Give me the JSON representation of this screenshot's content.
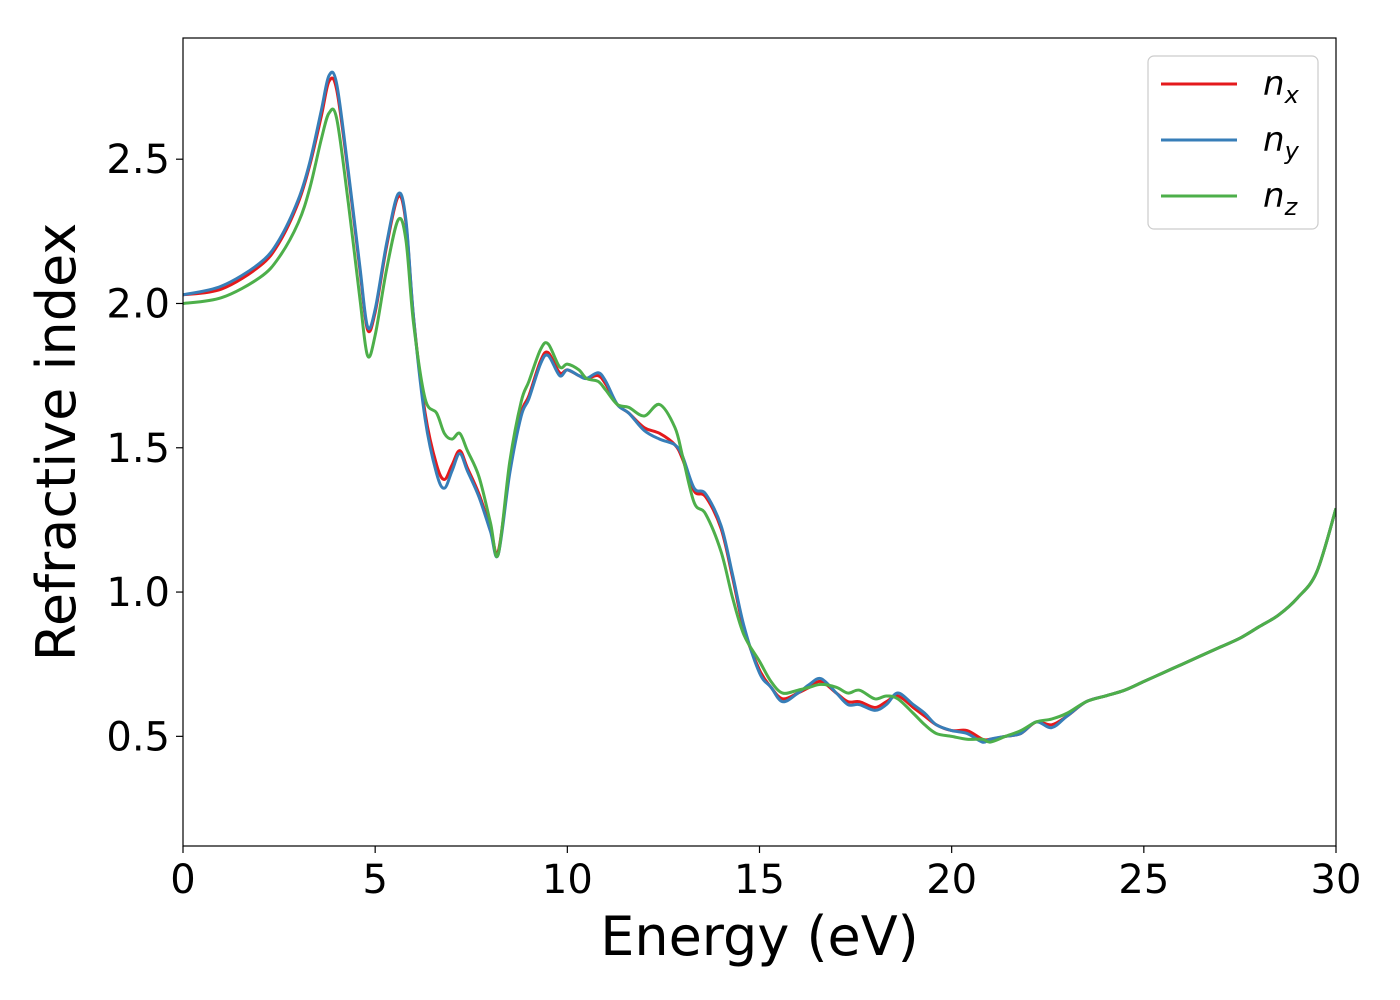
{
  "chart_data": {
    "type": "line",
    "xlabel": "Energy (eV)",
    "ylabel": "Refractive index",
    "xlim": [
      0,
      30
    ],
    "ylim": [
      0.12,
      2.92
    ],
    "xticks": [
      0,
      5,
      10,
      15,
      20,
      25,
      30
    ],
    "xtick_labels": [
      "0",
      "5",
      "10",
      "15",
      "20",
      "25",
      "30"
    ],
    "yticks": [
      0.5,
      1.0,
      1.5,
      2.0,
      2.5
    ],
    "ytick_labels": [
      "0.5",
      "1.0",
      "1.5",
      "2.0",
      "2.5"
    ],
    "grid": false,
    "legend_position": "top-right",
    "series": [
      {
        "name": "n_x",
        "label_base": "n",
        "label_sub": "x",
        "color": "#e41a1c",
        "x": [
          0,
          1,
          2,
          2.5,
          3,
          3.3,
          3.6,
          3.8,
          4.0,
          4.3,
          4.6,
          4.8,
          5.0,
          5.3,
          5.6,
          5.8,
          6.0,
          6.3,
          6.6,
          6.8,
          7.0,
          7.2,
          7.4,
          7.7,
          8.0,
          8.2,
          8.5,
          8.8,
          9.0,
          9.3,
          9.5,
          9.8,
          10.0,
          10.3,
          10.5,
          10.8,
          11.0,
          11.3,
          11.6,
          12.0,
          12.4,
          12.8,
          13.0,
          13.3,
          13.6,
          14.0,
          14.3,
          14.6,
          15.0,
          15.3,
          15.6,
          16.0,
          16.3,
          16.6,
          17.0,
          17.3,
          17.6,
          18.0,
          18.3,
          18.6,
          19.0,
          19.3,
          19.6,
          20.0,
          20.4,
          20.8,
          21.0,
          21.4,
          21.8,
          22.2,
          22.6,
          23.0,
          23.5,
          24.0,
          24.5,
          25.0,
          25.5,
          26.0,
          26.5,
          27.0,
          27.5,
          28.0,
          28.5,
          29.0,
          29.5,
          30.0
        ],
        "y": [
          2.03,
          2.05,
          2.13,
          2.21,
          2.35,
          2.48,
          2.65,
          2.77,
          2.74,
          2.45,
          2.12,
          1.91,
          1.97,
          2.2,
          2.37,
          2.28,
          1.95,
          1.62,
          1.44,
          1.39,
          1.44,
          1.49,
          1.43,
          1.34,
          1.22,
          1.14,
          1.42,
          1.62,
          1.68,
          1.8,
          1.83,
          1.76,
          1.77,
          1.75,
          1.74,
          1.75,
          1.72,
          1.65,
          1.62,
          1.57,
          1.55,
          1.51,
          1.46,
          1.35,
          1.33,
          1.22,
          1.05,
          0.87,
          0.73,
          0.67,
          0.63,
          0.65,
          0.67,
          0.69,
          0.65,
          0.62,
          0.62,
          0.6,
          0.62,
          0.64,
          0.6,
          0.57,
          0.54,
          0.52,
          0.52,
          0.49,
          0.49,
          0.5,
          0.51,
          0.55,
          0.54,
          0.57,
          0.62,
          0.64,
          0.66,
          0.69,
          0.72,
          0.75,
          0.78,
          0.81,
          0.84,
          0.88,
          0.92,
          0.98,
          1.07,
          1.29
        ]
      },
      {
        "name": "n_y",
        "label_base": "n",
        "label_sub": "y",
        "color": "#377eb8",
        "x": [
          0,
          1,
          2,
          2.5,
          3,
          3.3,
          3.6,
          3.8,
          4.0,
          4.3,
          4.6,
          4.8,
          5.0,
          5.3,
          5.6,
          5.8,
          6.0,
          6.3,
          6.6,
          6.8,
          7.0,
          7.2,
          7.4,
          7.7,
          8.0,
          8.2,
          8.5,
          8.8,
          9.0,
          9.3,
          9.5,
          9.8,
          10.0,
          10.3,
          10.5,
          10.8,
          11.0,
          11.3,
          11.6,
          12.0,
          12.4,
          12.8,
          13.0,
          13.3,
          13.6,
          14.0,
          14.3,
          14.6,
          15.0,
          15.3,
          15.6,
          16.0,
          16.3,
          16.6,
          17.0,
          17.3,
          17.6,
          18.0,
          18.3,
          18.6,
          19.0,
          19.3,
          19.6,
          20.0,
          20.4,
          20.8,
          21.0,
          21.4,
          21.8,
          22.2,
          22.6,
          23.0,
          23.5,
          24.0,
          24.5,
          25.0,
          25.5,
          26.0,
          26.5,
          27.0,
          27.5,
          28.0,
          28.5,
          29.0,
          29.5,
          30.0
        ],
        "y": [
          2.03,
          2.06,
          2.14,
          2.22,
          2.36,
          2.49,
          2.67,
          2.79,
          2.76,
          2.46,
          2.13,
          1.92,
          1.98,
          2.21,
          2.38,
          2.29,
          1.95,
          1.6,
          1.41,
          1.36,
          1.42,
          1.48,
          1.42,
          1.33,
          1.21,
          1.13,
          1.41,
          1.61,
          1.67,
          1.79,
          1.82,
          1.75,
          1.77,
          1.75,
          1.74,
          1.76,
          1.73,
          1.65,
          1.62,
          1.56,
          1.53,
          1.51,
          1.47,
          1.36,
          1.34,
          1.23,
          1.06,
          0.88,
          0.72,
          0.67,
          0.62,
          0.65,
          0.68,
          0.7,
          0.65,
          0.61,
          0.61,
          0.59,
          0.61,
          0.65,
          0.61,
          0.58,
          0.54,
          0.52,
          0.51,
          0.48,
          0.49,
          0.5,
          0.51,
          0.55,
          0.53,
          0.57,
          0.62,
          0.64,
          0.66,
          0.69,
          0.72,
          0.75,
          0.78,
          0.81,
          0.84,
          0.88,
          0.92,
          0.98,
          1.07,
          1.29
        ]
      },
      {
        "name": "n_z",
        "label_base": "n",
        "label_sub": "z",
        "color": "#4daf4a",
        "x": [
          0,
          1,
          2,
          2.5,
          3,
          3.3,
          3.6,
          3.8,
          4.0,
          4.3,
          4.6,
          4.8,
          5.0,
          5.3,
          5.6,
          5.8,
          6.0,
          6.3,
          6.6,
          6.8,
          7.0,
          7.2,
          7.4,
          7.7,
          8.0,
          8.2,
          8.5,
          8.8,
          9.0,
          9.3,
          9.5,
          9.8,
          10.0,
          10.3,
          10.5,
          10.8,
          11.0,
          11.3,
          11.6,
          12.0,
          12.4,
          12.8,
          13.0,
          13.3,
          13.6,
          14.0,
          14.3,
          14.6,
          15.0,
          15.3,
          15.6,
          16.0,
          16.3,
          16.6,
          17.0,
          17.3,
          17.6,
          18.0,
          18.3,
          18.6,
          19.0,
          19.3,
          19.6,
          20.0,
          20.4,
          20.8,
          21.0,
          21.4,
          21.8,
          22.2,
          22.6,
          23.0,
          23.5,
          24.0,
          24.5,
          25.0,
          25.5,
          26.0,
          26.5,
          27.0,
          27.5,
          28.0,
          28.5,
          29.0,
          29.5,
          30.0
        ],
        "y": [
          2.0,
          2.02,
          2.09,
          2.16,
          2.28,
          2.4,
          2.57,
          2.66,
          2.64,
          2.35,
          2.02,
          1.82,
          1.89,
          2.12,
          2.29,
          2.22,
          1.93,
          1.67,
          1.62,
          1.55,
          1.53,
          1.55,
          1.49,
          1.4,
          1.24,
          1.13,
          1.45,
          1.66,
          1.73,
          1.84,
          1.86,
          1.78,
          1.79,
          1.77,
          1.74,
          1.73,
          1.7,
          1.65,
          1.64,
          1.61,
          1.65,
          1.57,
          1.47,
          1.31,
          1.27,
          1.14,
          0.98,
          0.85,
          0.76,
          0.69,
          0.65,
          0.66,
          0.67,
          0.68,
          0.67,
          0.65,
          0.66,
          0.63,
          0.64,
          0.63,
          0.58,
          0.54,
          0.51,
          0.5,
          0.49,
          0.49,
          0.48,
          0.5,
          0.52,
          0.55,
          0.56,
          0.58,
          0.62,
          0.64,
          0.66,
          0.69,
          0.72,
          0.75,
          0.78,
          0.81,
          0.84,
          0.88,
          0.92,
          0.98,
          1.07,
          1.29
        ]
      }
    ]
  }
}
